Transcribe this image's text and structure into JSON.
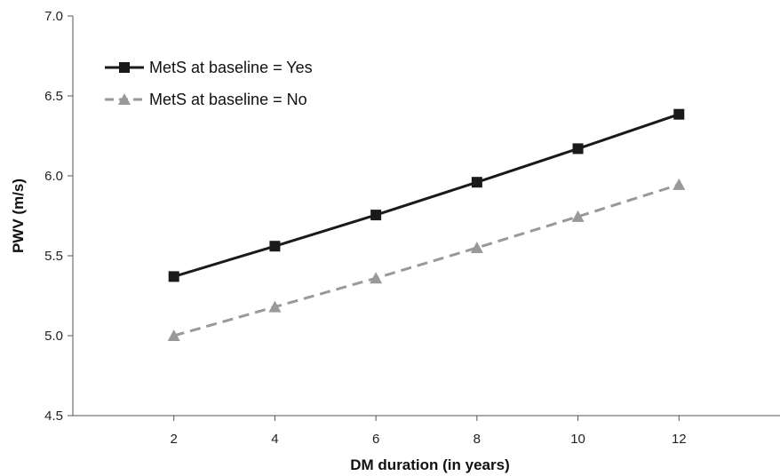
{
  "chart_data": {
    "type": "line",
    "x": [
      2,
      4,
      6,
      8,
      10,
      12
    ],
    "series": [
      {
        "name": "MetS at baseline = Yes",
        "values": [
          5.37,
          5.56,
          5.755,
          5.96,
          6.17,
          6.385
        ],
        "color": "#1a1a1a",
        "marker": "square",
        "dash": "solid"
      },
      {
        "name": "MetS at baseline = No",
        "values": [
          5.0,
          5.18,
          5.36,
          5.55,
          5.745,
          5.945
        ],
        "color": "#999999",
        "marker": "triangle",
        "dash": "dashed"
      }
    ],
    "xlabel": "DM duration (in years)",
    "ylabel": "PWV (m/s)",
    "xlim": [
      0,
      14
    ],
    "ylim": [
      4.5,
      7.0
    ],
    "x_ticks": [
      "2",
      "4",
      "6",
      "8",
      "10",
      "12"
    ],
    "y_ticks": [
      "4.5",
      "5.0",
      "5.5",
      "6.0",
      "6.5",
      "7.0"
    ],
    "grid": false,
    "legend_position": "top-left"
  }
}
